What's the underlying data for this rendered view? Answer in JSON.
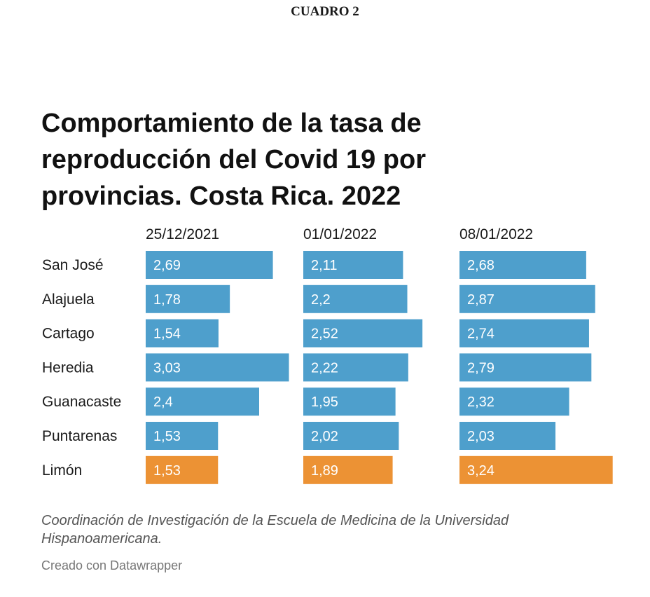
{
  "heading": "CUADRO 2",
  "title": "Comportamiento de la tasa de reproducción del Covid 19 por provincias. Costa Rica. 2022",
  "notes": "Coordinación de Investigación de la Escuela de Medicina de la Universidad Hispanoamericana.",
  "credit": "Creado con Datawrapper",
  "colors": {
    "bar": "#4e9fcc",
    "highlight": "#ec9234",
    "bar_text": "#ffffff"
  },
  "chart_data": {
    "type": "bar",
    "orientation": "horizontal",
    "layout": "small-multiples",
    "categories": [
      "San José",
      "Alajuela",
      "Cartago",
      "Heredia",
      "Guanacaste",
      "Puntarenas",
      "Limón"
    ],
    "highlight_category": "Limón",
    "series": [
      {
        "name": "25/12/2021",
        "values": [
          2.69,
          1.78,
          1.54,
          3.03,
          2.4,
          1.53,
          1.53
        ],
        "labels": [
          "2,69",
          "1,78",
          "1,54",
          "3,03",
          "2,4",
          "1,53",
          "1,53"
        ]
      },
      {
        "name": "01/01/2022",
        "values": [
          2.11,
          2.2,
          2.52,
          2.22,
          1.95,
          2.02,
          1.89
        ],
        "labels": [
          "2,11",
          "2,2",
          "2,52",
          "2,22",
          "1,95",
          "2,02",
          "1,89"
        ]
      },
      {
        "name": "08/01/2022",
        "values": [
          2.68,
          2.87,
          2.74,
          2.79,
          2.32,
          2.03,
          3.24
        ],
        "labels": [
          "2,68",
          "2,87",
          "2,74",
          "2,79",
          "2,32",
          "2,03",
          "3,24"
        ]
      }
    ]
  }
}
